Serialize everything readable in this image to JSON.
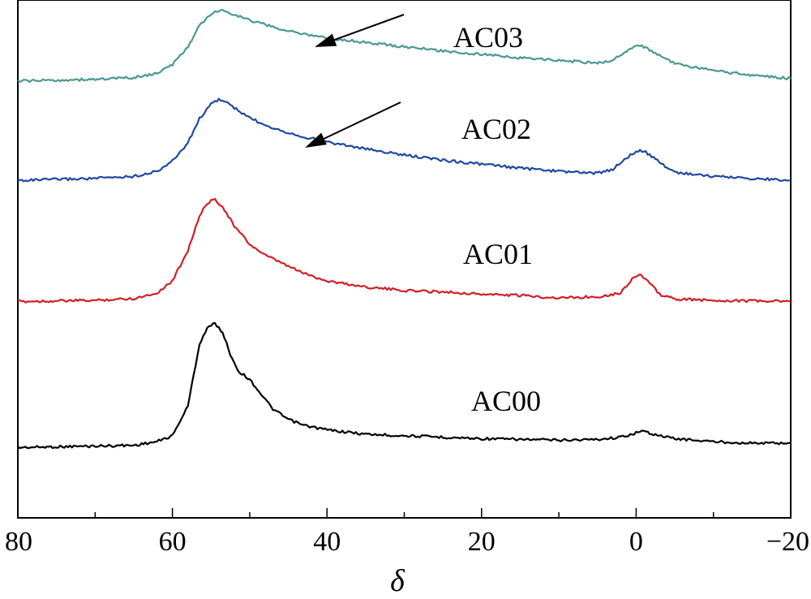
{
  "chart_data": {
    "type": "line",
    "xlabel": "δ",
    "ylabel": "",
    "xlim": [
      80,
      -20
    ],
    "x_reversed": true,
    "y_ticks_shown": false,
    "grid": false,
    "x_ticks": [
      80,
      60,
      40,
      20,
      0,
      -20
    ],
    "x_tick_labels": [
      "80",
      "60",
      "40",
      "20",
      "0",
      "−20"
    ],
    "series": [
      {
        "name": "AC00",
        "color": "#000000",
        "baseline": 0.5,
        "points": [
          [
            80,
            0.2
          ],
          [
            75,
            0.25
          ],
          [
            70,
            0.3
          ],
          [
            65,
            0.35
          ],
          [
            62,
            0.6
          ],
          [
            60,
            1.0
          ],
          [
            58,
            3.0
          ],
          [
            56.5,
            7.2
          ],
          [
            55.5,
            8.3
          ],
          [
            54.5,
            8.6
          ],
          [
            53.5,
            8.0
          ],
          [
            52.5,
            6.5
          ],
          [
            51.5,
            5.4
          ],
          [
            50,
            4.8
          ],
          [
            48.5,
            3.8
          ],
          [
            47,
            2.8
          ],
          [
            45,
            2.1
          ],
          [
            43,
            1.7
          ],
          [
            40,
            1.4
          ],
          [
            35,
            1.1
          ],
          [
            30,
            1.0
          ],
          [
            25,
            0.9
          ],
          [
            20,
            0.8
          ],
          [
            15,
            0.75
          ],
          [
            10,
            0.7
          ],
          [
            5,
            0.75
          ],
          [
            2,
            0.9
          ],
          [
            0,
            1.2
          ],
          [
            -1,
            1.3
          ],
          [
            -3,
            1.0
          ],
          [
            -5,
            0.8
          ],
          [
            -10,
            0.6
          ],
          [
            -15,
            0.5
          ],
          [
            -20,
            0.5
          ]
        ]
      },
      {
        "name": "AC01",
        "color": "#d21e28",
        "baseline": 0.5,
        "points": [
          [
            80,
            0.3
          ],
          [
            75,
            0.35
          ],
          [
            70,
            0.4
          ],
          [
            65,
            0.55
          ],
          [
            62,
            1.0
          ],
          [
            60,
            2.0
          ],
          [
            58,
            4.5
          ],
          [
            56.5,
            7.3
          ],
          [
            55.5,
            8.4
          ],
          [
            54.5,
            8.7
          ],
          [
            53.5,
            8.1
          ],
          [
            52,
            6.5
          ],
          [
            50,
            5.0
          ],
          [
            48,
            4.1
          ],
          [
            46,
            3.5
          ],
          [
            44,
            2.9
          ],
          [
            42,
            2.4
          ],
          [
            40,
            2.0
          ],
          [
            35,
            1.5
          ],
          [
            30,
            1.2
          ],
          [
            25,
            1.1
          ],
          [
            20,
            0.9
          ],
          [
            15,
            0.8
          ],
          [
            10,
            0.6
          ],
          [
            5,
            0.7
          ],
          [
            2,
            1.0
          ],
          [
            0.5,
            2.2
          ],
          [
            -0.5,
            2.5
          ],
          [
            -1.5,
            2.0
          ],
          [
            -3,
            0.9
          ],
          [
            -5,
            0.5
          ],
          [
            -10,
            0.4
          ],
          [
            -15,
            0.35
          ],
          [
            -20,
            0.3
          ]
        ]
      },
      {
        "name": "AC02",
        "color": "#1f48a0",
        "baseline": 0.5,
        "points": [
          [
            80,
            0.3
          ],
          [
            75,
            0.4
          ],
          [
            70,
            0.5
          ],
          [
            65,
            0.7
          ],
          [
            62,
            1.2
          ],
          [
            60,
            2.2
          ],
          [
            58,
            4.0
          ],
          [
            56.5,
            6.4
          ],
          [
            55,
            7.8
          ],
          [
            54,
            8.3
          ],
          [
            53,
            8.0
          ],
          [
            51,
            6.9
          ],
          [
            49,
            6.1
          ],
          [
            47,
            5.5
          ],
          [
            45,
            5.0
          ],
          [
            43,
            4.6
          ],
          [
            40,
            4.1
          ],
          [
            35,
            3.4
          ],
          [
            30,
            2.8
          ],
          [
            25,
            2.3
          ],
          [
            20,
            1.9
          ],
          [
            15,
            1.5
          ],
          [
            10,
            1.2
          ],
          [
            5,
            1.0
          ],
          [
            3,
            1.4
          ],
          [
            1.5,
            2.4
          ],
          [
            0,
            3.2
          ],
          [
            -1,
            3.2
          ],
          [
            -3,
            2.1
          ],
          [
            -5,
            1.1
          ],
          [
            -10,
            0.7
          ],
          [
            -15,
            0.5
          ],
          [
            -20,
            0.3
          ]
        ]
      },
      {
        "name": "AC03",
        "color": "#4a9890",
        "baseline": 0.5,
        "points": [
          [
            80,
            0.2
          ],
          [
            75,
            0.3
          ],
          [
            70,
            0.4
          ],
          [
            65,
            0.6
          ],
          [
            62,
            1.1
          ],
          [
            60,
            2.1
          ],
          [
            58,
            4.2
          ],
          [
            56.5,
            6.6
          ],
          [
            55,
            8.0
          ],
          [
            54,
            8.4
          ],
          [
            53,
            8.3
          ],
          [
            51,
            7.6
          ],
          [
            49,
            7.0
          ],
          [
            47,
            6.5
          ],
          [
            45,
            6.0
          ],
          [
            43,
            5.7
          ],
          [
            40,
            5.2
          ],
          [
            35,
            4.7
          ],
          [
            30,
            4.2
          ],
          [
            25,
            3.7
          ],
          [
            20,
            3.3
          ],
          [
            15,
            2.9
          ],
          [
            10,
            2.6
          ],
          [
            5,
            2.3
          ],
          [
            3,
            2.6
          ],
          [
            1.5,
            3.6
          ],
          [
            0,
            4.3
          ],
          [
            -1,
            4.2
          ],
          [
            -3,
            3.2
          ],
          [
            -5,
            2.2
          ],
          [
            -10,
            1.4
          ],
          [
            -15,
            0.9
          ],
          [
            -20,
            0.5
          ]
        ]
      }
    ],
    "annotations": [
      {
        "type": "arrow",
        "series": "AC03",
        "target_x": 41,
        "label": ""
      },
      {
        "type": "arrow",
        "series": "AC02",
        "target_x": 42,
        "label": ""
      }
    ]
  }
}
